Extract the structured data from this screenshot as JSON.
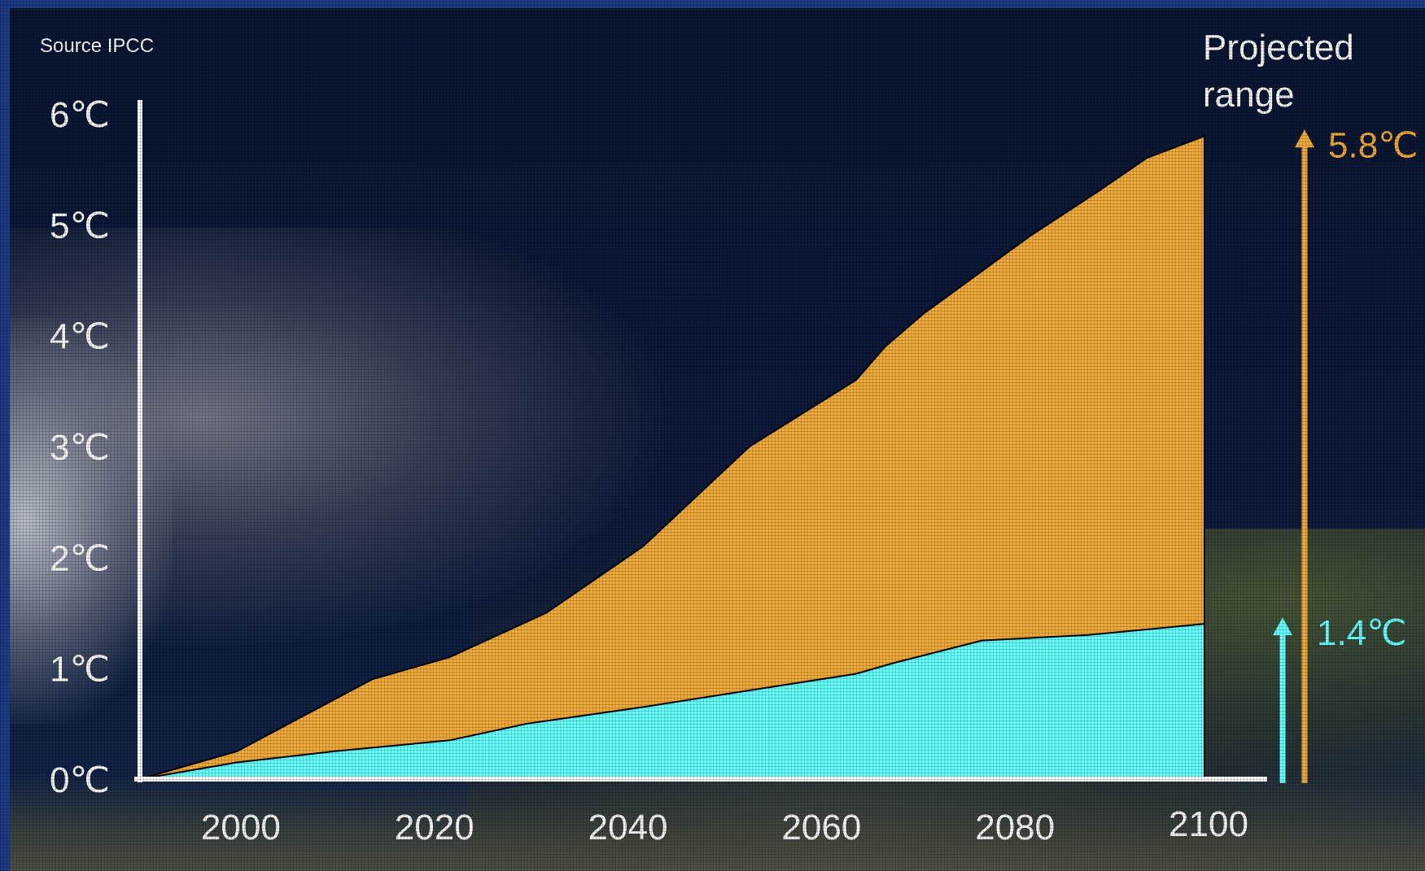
{
  "source_label": "Source IPCC",
  "range_title": [
    "Projected",
    "range"
  ],
  "colors": {
    "high": "#f0ab3a",
    "low": "#66ffff",
    "axis": "#ffffff",
    "outline": "#000000"
  },
  "chart_data": {
    "type": "area",
    "x_ticks": [
      "2000",
      "2020",
      "2040",
      "2060",
      "2080",
      "2100"
    ],
    "y_ticks": [
      "0℃",
      "1℃",
      "2℃",
      "3℃",
      "4℃",
      "5℃",
      "6℃"
    ],
    "xlim": [
      1990,
      2100
    ],
    "ylim": [
      0,
      6
    ],
    "series": [
      {
        "x": [
          1990,
          2000,
          2014,
          2022,
          2032,
          2042,
          2053,
          2064,
          2067,
          2071,
          2082,
          2089,
          2094,
          2100
        ],
        "y": [
          0,
          0.25,
          0.9,
          1.1,
          1.5,
          2.1,
          3.0,
          3.6,
          3.9,
          4.2,
          4.9,
          5.3,
          5.6,
          5.8
        ]
      },
      {
        "x": [
          1990,
          2000,
          2010,
          2022,
          2030,
          2042,
          2053,
          2064,
          2068,
          2077,
          2088,
          2100
        ],
        "y": [
          0,
          0.15,
          0.25,
          0.35,
          0.5,
          0.65,
          0.8,
          0.95,
          1.05,
          1.25,
          1.3,
          1.4
        ]
      }
    ],
    "annotations": [
      {
        "text": "5.8℃",
        "value": 5.8,
        "color": "#f0ab3a"
      },
      {
        "text": "1.4℃",
        "value": 1.4,
        "color": "#66ffff"
      }
    ]
  }
}
